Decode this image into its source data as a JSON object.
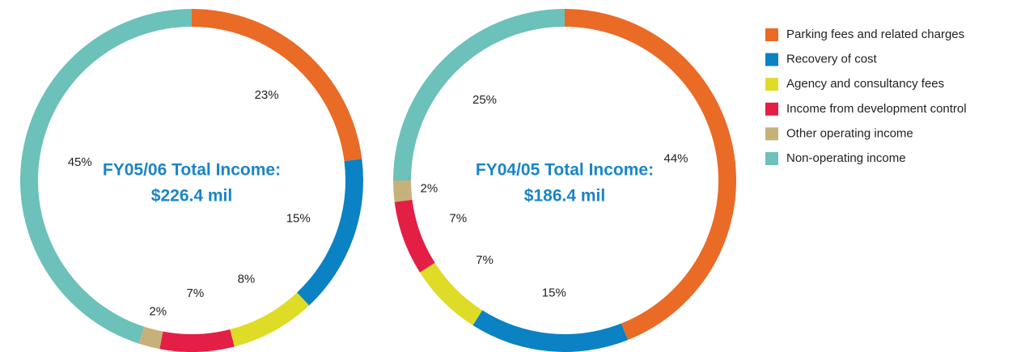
{
  "legend": {
    "labels": [
      "Parking fees and related charges",
      "Recovery of cost",
      "Agency and consultancy fees",
      "Income from development control",
      "Other operating income",
      "Non-operating income"
    ],
    "colors": [
      "#e96b26",
      "#0a82c4",
      "#dfdc27",
      "#e31f45",
      "#c7b17a",
      "#6cc1ba"
    ]
  },
  "chart_data": [
    {
      "type": "pie",
      "title": [
        "FY05/06 Total Income:",
        "$226.4 mil"
      ],
      "values": [
        23,
        15,
        8,
        7,
        2,
        45
      ],
      "value_labels": [
        "23%",
        "15%",
        "8%",
        "7%",
        "2%",
        "45%"
      ]
    },
    {
      "type": "pie",
      "title": [
        "FY04/05 Total Income:",
        "$186.4 mil"
      ],
      "values": [
        44,
        15,
        7,
        7,
        2,
        25
      ],
      "value_labels": [
        "44%",
        "15%",
        "7%",
        "7%",
        "2%",
        "25%"
      ]
    }
  ]
}
